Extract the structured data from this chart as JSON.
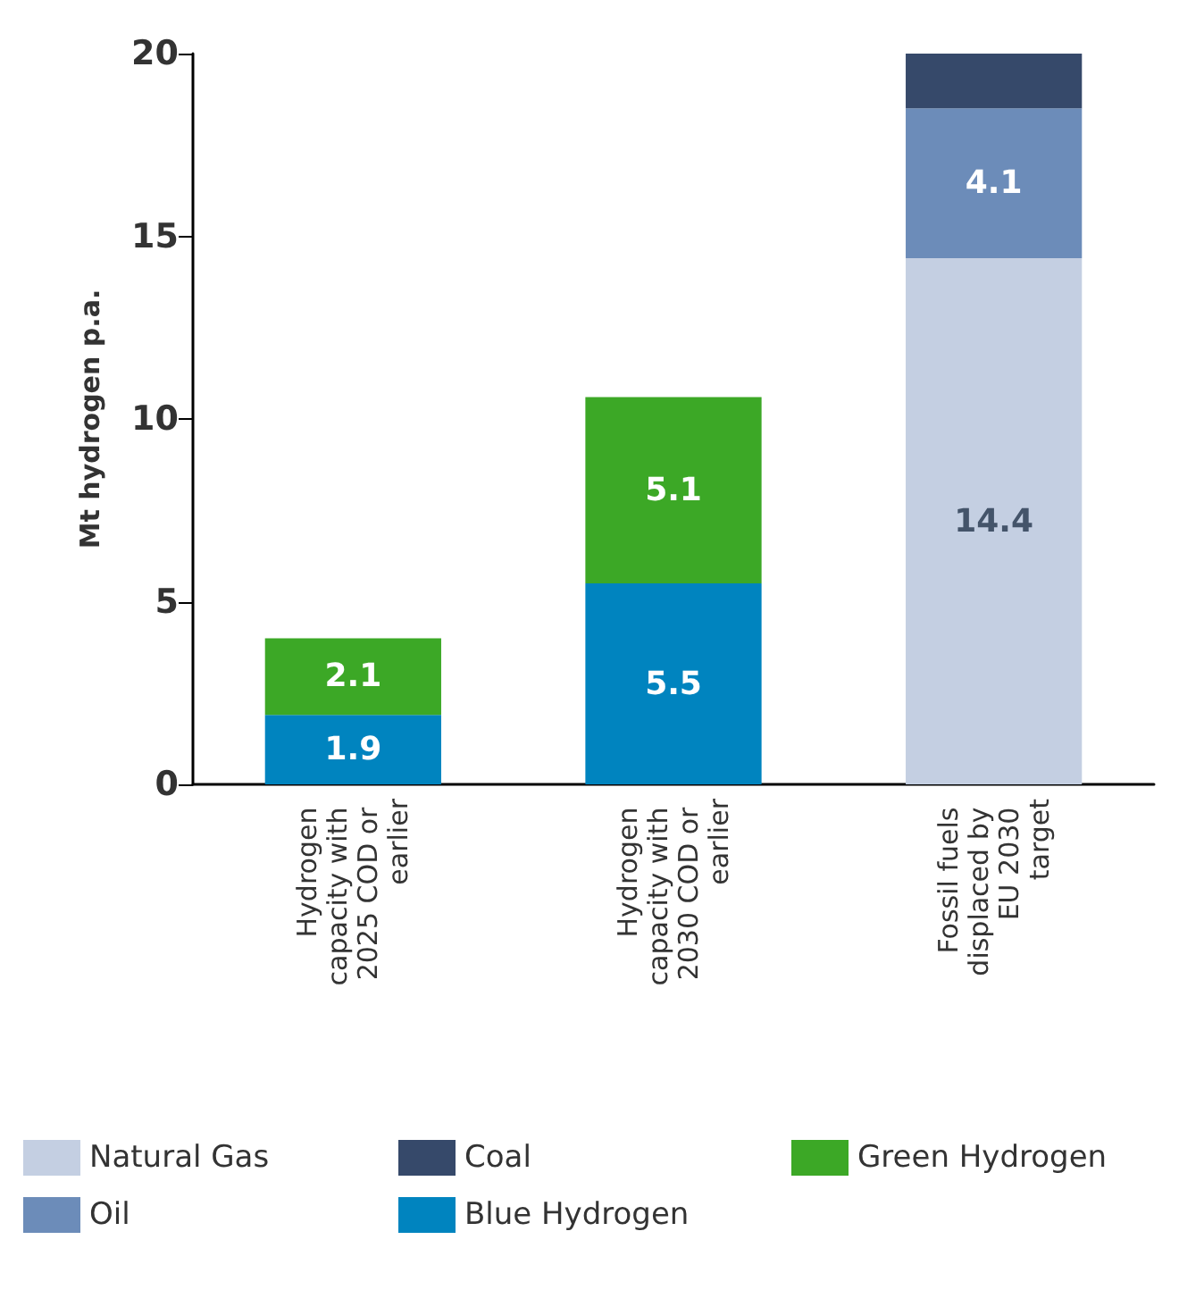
{
  "chart_data": {
    "type": "bar",
    "ylabel": "Mt hydrogen p.a.",
    "categories": [
      "Hydrogen capacity with 2025 COD or earlier",
      "Hydrogen capacity with 2030 COD or earlier",
      "Fossil fuels displaced by EU 2030 target"
    ],
    "stacked": true,
    "series": [
      {
        "name": "Natural Gas",
        "color": "#c4cfe2",
        "values": [
          null,
          null,
          14.4
        ],
        "value_labels": [
          null,
          null,
          "14.4"
        ]
      },
      {
        "name": "Oil",
        "color": "#6c8cb9",
        "values": [
          null,
          null,
          4.1
        ],
        "value_labels": [
          null,
          null,
          "4.1"
        ]
      },
      {
        "name": "Coal",
        "color": "#36496a",
        "values": [
          null,
          null,
          1.5
        ],
        "value_labels": [
          null,
          null,
          null
        ]
      },
      {
        "name": "Blue Hydrogen",
        "color": "#0084bf",
        "values": [
          1.9,
          5.5,
          null
        ],
        "value_labels": [
          "1.9",
          "5.5",
          null
        ]
      },
      {
        "name": "Green Hydrogen",
        "color": "#3ca826",
        "values": [
          2.1,
          5.1,
          null
        ],
        "value_labels": [
          "2.1",
          "5.1",
          null
        ]
      }
    ],
    "ylim": [
      0,
      20
    ],
    "yticks": [
      0,
      5,
      10,
      15,
      20
    ],
    "grid": false,
    "legend": "bottom"
  }
}
